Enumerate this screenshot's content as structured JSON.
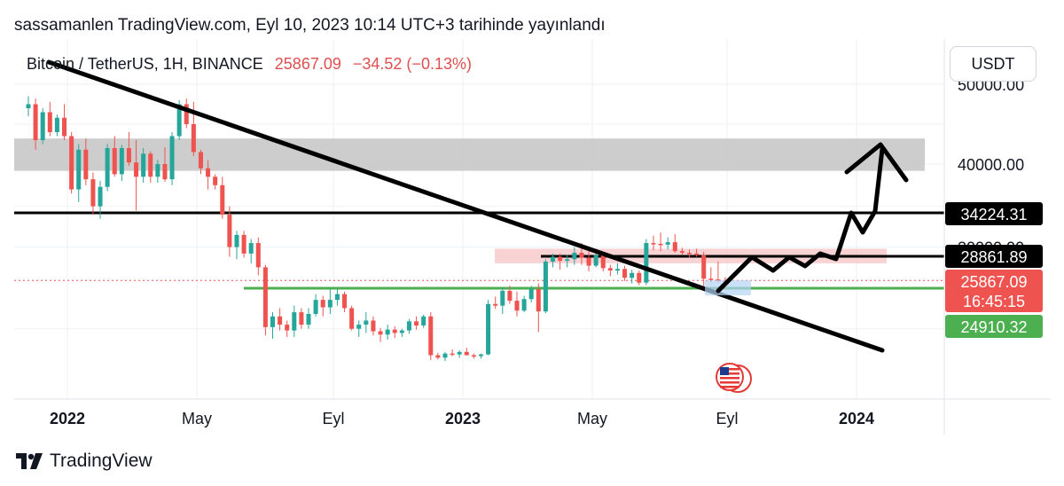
{
  "header": {
    "text": "sassamanlen TradingView.com, Eyl 10, 2023 10:14 UTC+3 tarihinde yayınlandı"
  },
  "legend": {
    "symbol": "Bitcoin / TetherUS, 1H, BINANCE",
    "price": "25867.09",
    "change": "−34.52 (−0.13%)"
  },
  "currency_button": {
    "label": "USDT"
  },
  "footer": {
    "brand": "TradingView"
  },
  "colors": {
    "up": "#26a69a",
    "down": "#ef5350",
    "support": "#4caf50",
    "zone_gray": "#c8c8c8",
    "zone_red": "#f8c7c9"
  },
  "chart_data": {
    "type": "candlestick",
    "x_axis": {
      "ticks": [
        "2022",
        "May",
        "Eyl",
        "2023",
        "May",
        "Eyl",
        "2024"
      ],
      "bold": [
        true,
        false,
        false,
        true,
        false,
        false,
        true
      ]
    },
    "y_axis": {
      "ticks": [
        {
          "value": 50000,
          "label": "50000.00"
        },
        {
          "value": 40000,
          "label": "40000.00"
        },
        {
          "value": 30000,
          "label": "30000.00"
        }
      ]
    },
    "price_labels": [
      {
        "value": 34224.31,
        "label": "34224.31",
        "bg": "#000000"
      },
      {
        "value": 28861.89,
        "label": "28861.89",
        "bg": "#000000"
      },
      {
        "value": 25867.09,
        "label": "25867.09",
        "sublabel": "16:45:15",
        "bg": "#ef5350"
      },
      {
        "value": 24910.32,
        "label": "24910.32",
        "bg": "#4caf50"
      }
    ],
    "horizontal_lines": [
      {
        "value": 34224.31,
        "color": "#000000"
      },
      {
        "value": 28861.89,
        "color": "#000000"
      },
      {
        "value": 24910.32,
        "color": "#4caf50"
      },
      {
        "value": 25867.09,
        "color": "#ef5350",
        "dotted": true
      }
    ],
    "zones": [
      {
        "from": 39200,
        "to": 43200,
        "color": "#c8c8c8"
      },
      {
        "from": 28000,
        "to": 29800,
        "color": "#f8c7c9"
      }
    ],
    "candles_ohlc": [
      [
        47000,
        48500,
        46000,
        47500
      ],
      [
        47500,
        48200,
        41800,
        43000
      ],
      [
        43000,
        47000,
        42500,
        46500
      ],
      [
        46500,
        47800,
        43500,
        44000
      ],
      [
        44000,
        46200,
        43500,
        45800
      ],
      [
        45800,
        47500,
        43000,
        43500
      ],
      [
        43500,
        44000,
        36500,
        37000
      ],
      [
        37000,
        42500,
        35500,
        41800
      ],
      [
        41800,
        43200,
        37500,
        38200
      ],
      [
        38200,
        39000,
        34000,
        35000
      ],
      [
        35000,
        38000,
        33500,
        37300
      ],
      [
        37300,
        42500,
        36800,
        42000
      ],
      [
        42000,
        43500,
        38500,
        38800
      ],
      [
        38800,
        42400,
        38000,
        42000
      ],
      [
        42000,
        44000,
        39800,
        40200
      ],
      [
        40200,
        43000,
        34500,
        38500
      ],
      [
        38500,
        42000,
        37800,
        41300
      ],
      [
        41300,
        41600,
        37800,
        38500
      ],
      [
        38500,
        40500,
        37800,
        40000
      ],
      [
        40000,
        42100,
        37900,
        38200
      ],
      [
        38200,
        44000,
        37500,
        43500
      ],
      [
        43500,
        48000,
        43000,
        47500
      ],
      [
        47500,
        48200,
        44500,
        45000
      ],
      [
        45000,
        47800,
        41000,
        41500
      ],
      [
        41500,
        41800,
        38800,
        39500
      ],
      [
        39500,
        40500,
        37000,
        38500
      ],
      [
        38500,
        38800,
        37000,
        37500
      ],
      [
        37500,
        38500,
        33500,
        34000
      ],
      [
        34000,
        35000,
        28800,
        30000
      ],
      [
        30000,
        32000,
        28500,
        31500
      ],
      [
        31500,
        32000,
        28700,
        29200
      ],
      [
        29200,
        31000,
        28000,
        30500
      ],
      [
        30500,
        31200,
        26500,
        27500
      ],
      [
        27500,
        27800,
        19200,
        20200
      ],
      [
        20200,
        22000,
        18800,
        21500
      ],
      [
        21500,
        22500,
        19800,
        20500
      ],
      [
        20500,
        21000,
        19000,
        19800
      ],
      [
        19800,
        22800,
        19000,
        22000
      ],
      [
        22000,
        22500,
        20000,
        20500
      ],
      [
        20500,
        22500,
        20000,
        21800
      ],
      [
        21800,
        24200,
        21500,
        23500
      ],
      [
        23500,
        24000,
        21500,
        22600
      ],
      [
        22600,
        24800,
        21800,
        23500
      ],
      [
        23500,
        24800,
        22800,
        24200
      ],
      [
        24200,
        24500,
        22000,
        22500
      ],
      [
        22500,
        22800,
        19800,
        20000
      ],
      [
        20000,
        21000,
        19000,
        20500
      ],
      [
        20500,
        22000,
        19500,
        21000
      ],
      [
        21000,
        21500,
        19200,
        19700
      ],
      [
        19700,
        20100,
        18400,
        19300
      ],
      [
        19300,
        20500,
        18700,
        19900
      ],
      [
        19900,
        20300,
        18900,
        19500
      ],
      [
        19500,
        20000,
        19000,
        19800
      ],
      [
        19800,
        21200,
        19400,
        20900
      ],
      [
        20900,
        21500,
        19900,
        20400
      ],
      [
        20400,
        21700,
        20100,
        21500
      ],
      [
        21500,
        22000,
        16200,
        16800
      ],
      [
        16800,
        17100,
        16300,
        16500
      ],
      [
        16500,
        17200,
        16100,
        17000
      ],
      [
        17000,
        17500,
        16700,
        16900
      ],
      [
        16900,
        17400,
        16500,
        17200
      ],
      [
        17200,
        17700,
        16900,
        16800
      ],
      [
        16800,
        17000,
        16400,
        16700
      ],
      [
        16700,
        17000,
        16400,
        16900
      ],
      [
        16900,
        23500,
        16800,
        23000
      ],
      [
        23000,
        23900,
        22400,
        22800
      ],
      [
        22800,
        25000,
        21800,
        24600
      ],
      [
        24600,
        25200,
        23000,
        23400
      ],
      [
        23400,
        24500,
        21500,
        22200
      ],
      [
        22200,
        24000,
        22000,
        23600
      ],
      [
        23600,
        25200,
        23200,
        24800
      ],
      [
        24800,
        25500,
        19600,
        22100
      ],
      [
        22100,
        28500,
        21900,
        28200
      ],
      [
        28200,
        29200,
        27500,
        28800
      ],
      [
        28800,
        29200,
        27200,
        28300
      ],
      [
        28300,
        29000,
        27500,
        28500
      ],
      [
        28500,
        30000,
        27800,
        29300
      ],
      [
        29300,
        30500,
        27800,
        28700
      ],
      [
        28700,
        29600,
        27000,
        27700
      ],
      [
        27700,
        29800,
        27500,
        29000
      ],
      [
        29000,
        29200,
        27000,
        27400
      ],
      [
        27400,
        27800,
        26400,
        27100
      ],
      [
        27100,
        28000,
        26600,
        27300
      ],
      [
        27300,
        27700,
        25800,
        26200
      ],
      [
        26200,
        27200,
        25500,
        26800
      ],
      [
        26800,
        27100,
        25300,
        25600
      ],
      [
        25600,
        31000,
        25300,
        30500
      ],
      [
        30500,
        31400,
        29600,
        30400
      ],
      [
        30400,
        31800,
        29500,
        30300
      ],
      [
        30300,
        31200,
        29700,
        30600
      ],
      [
        30600,
        31600,
        29300,
        29500
      ],
      [
        29500,
        29900,
        29000,
        29300
      ],
      [
        29300,
        29700,
        28700,
        29200
      ],
      [
        29200,
        29800,
        28800,
        29000
      ],
      [
        29000,
        29400,
        25200,
        26100
      ],
      [
        26100,
        27500,
        25600,
        26000
      ],
      [
        26000,
        28200,
        25600,
        25900
      ],
      [
        25900,
        26300,
        25700,
        25867
      ]
    ]
  },
  "drawings": {
    "trend_line": true,
    "projection_arrow": true,
    "event_flag": "us-flag-icon"
  }
}
